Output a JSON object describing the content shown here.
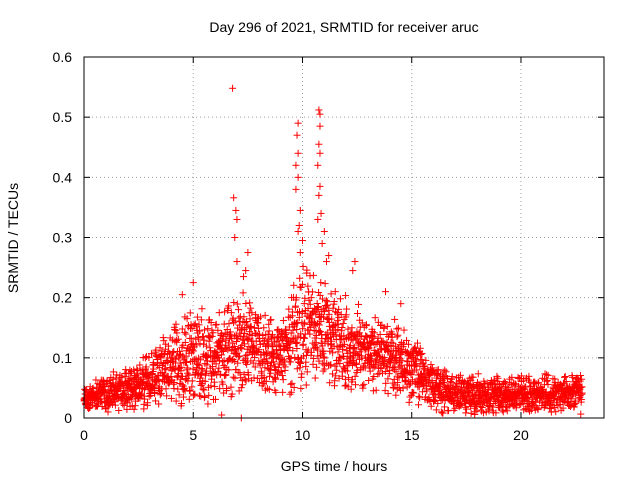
{
  "chart_data": {
    "type": "scatter",
    "title": "Day 296 of 2021, SRMTID for receiver aruc",
    "xlabel": "GPS time / hours",
    "ylabel": "SRMTID / TECUs",
    "xlim": [
      0,
      23.8
    ],
    "ylim": [
      0,
      0.6
    ],
    "xticks": [
      0,
      5,
      10,
      15,
      20
    ],
    "xtick_labels": [
      "0",
      "5",
      "10",
      "15",
      "20"
    ],
    "yticks": [
      0,
      0.1,
      0.2,
      0.3,
      0.4,
      0.5,
      0.6
    ],
    "ytick_labels": [
      "0",
      "0.1",
      "0.2",
      "0.3",
      "0.4",
      "0.5",
      "0.6"
    ],
    "grid": true,
    "marker": "+",
    "series": [
      {
        "name": "SRMTID",
        "color": "#ff0000",
        "profile": [
          {
            "t": 0.0,
            "base": 0.035,
            "spread": 0.02
          },
          {
            "t": 1.5,
            "base": 0.045,
            "spread": 0.03
          },
          {
            "t": 3.0,
            "base": 0.06,
            "spread": 0.04
          },
          {
            "t": 4.0,
            "base": 0.09,
            "spread": 0.06
          },
          {
            "t": 5.0,
            "base": 0.11,
            "spread": 0.08
          },
          {
            "t": 6.0,
            "base": 0.1,
            "spread": 0.07
          },
          {
            "t": 7.0,
            "base": 0.13,
            "spread": 0.08
          },
          {
            "t": 8.0,
            "base": 0.11,
            "spread": 0.06
          },
          {
            "t": 9.0,
            "base": 0.1,
            "spread": 0.06
          },
          {
            "t": 10.0,
            "base": 0.15,
            "spread": 0.09
          },
          {
            "t": 11.0,
            "base": 0.15,
            "spread": 0.08
          },
          {
            "t": 12.0,
            "base": 0.12,
            "spread": 0.07
          },
          {
            "t": 13.0,
            "base": 0.11,
            "spread": 0.06
          },
          {
            "t": 14.0,
            "base": 0.1,
            "spread": 0.06
          },
          {
            "t": 15.0,
            "base": 0.08,
            "spread": 0.05
          },
          {
            "t": 16.0,
            "base": 0.05,
            "spread": 0.04
          },
          {
            "t": 17.0,
            "base": 0.04,
            "spread": 0.03
          },
          {
            "t": 20.0,
            "base": 0.04,
            "spread": 0.03
          },
          {
            "t": 22.8,
            "base": 0.04,
            "spread": 0.03
          }
        ],
        "samples_per_hour": 110,
        "t_end": 22.8,
        "outliers": [
          {
            "x": 6.8,
            "y": 0.548
          },
          {
            "x": 6.85,
            "y": 0.366
          },
          {
            "x": 6.95,
            "y": 0.345
          },
          {
            "x": 7.0,
            "y": 0.33
          },
          {
            "x": 6.9,
            "y": 0.3
          },
          {
            "x": 7.0,
            "y": 0.26
          },
          {
            "x": 7.5,
            "y": 0.275
          },
          {
            "x": 7.4,
            "y": 0.245
          },
          {
            "x": 7.3,
            "y": 0.235
          },
          {
            "x": 7.2,
            "y": 0.0
          },
          {
            "x": 6.3,
            "y": 0.005
          },
          {
            "x": 9.8,
            "y": 0.49
          },
          {
            "x": 9.75,
            "y": 0.47
          },
          {
            "x": 9.8,
            "y": 0.44
          },
          {
            "x": 9.7,
            "y": 0.42
          },
          {
            "x": 9.8,
            "y": 0.4
          },
          {
            "x": 9.7,
            "y": 0.38
          },
          {
            "x": 9.9,
            "y": 0.345
          },
          {
            "x": 9.85,
            "y": 0.32
          },
          {
            "x": 9.8,
            "y": 0.31
          },
          {
            "x": 10.0,
            "y": 0.295
          },
          {
            "x": 9.9,
            "y": 0.275
          },
          {
            "x": 10.75,
            "y": 0.512
          },
          {
            "x": 10.8,
            "y": 0.505
          },
          {
            "x": 10.8,
            "y": 0.485
          },
          {
            "x": 10.75,
            "y": 0.455
          },
          {
            "x": 10.8,
            "y": 0.44
          },
          {
            "x": 10.7,
            "y": 0.42
          },
          {
            "x": 10.8,
            "y": 0.385
          },
          {
            "x": 10.75,
            "y": 0.37
          },
          {
            "x": 10.85,
            "y": 0.34
          },
          {
            "x": 10.7,
            "y": 0.33
          },
          {
            "x": 11.0,
            "y": 0.31
          },
          {
            "x": 10.9,
            "y": 0.29
          },
          {
            "x": 11.2,
            "y": 0.27
          },
          {
            "x": 11.1,
            "y": 0.26
          },
          {
            "x": 4.5,
            "y": 0.205
          },
          {
            "x": 5.0,
            "y": 0.225
          },
          {
            "x": 12.4,
            "y": 0.26
          },
          {
            "x": 12.3,
            "y": 0.245
          },
          {
            "x": 13.8,
            "y": 0.21
          },
          {
            "x": 14.5,
            "y": 0.19
          },
          {
            "x": 10.4,
            "y": 0.2
          },
          {
            "x": 11.5,
            "y": 0.21
          }
        ]
      }
    ]
  }
}
